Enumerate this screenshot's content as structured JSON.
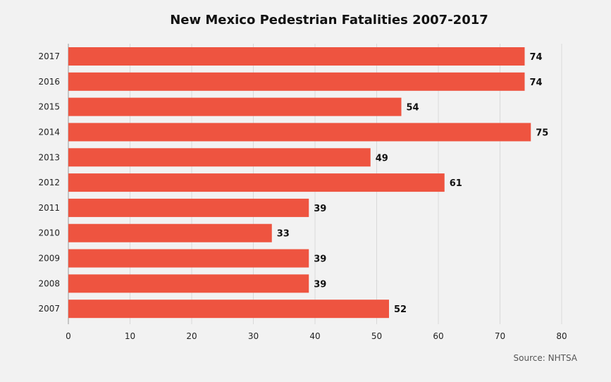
{
  "chart_data": {
    "type": "bar",
    "orientation": "horizontal",
    "title": "New Mexico Pedestrian Fatalities 2007-2017",
    "source": "Source: NHTSA",
    "categories": [
      "2017",
      "2016",
      "2015",
      "2014",
      "2013",
      "2012",
      "2011",
      "2010",
      "2009",
      "2008",
      "2007"
    ],
    "values": [
      74,
      74,
      54,
      75,
      49,
      61,
      39,
      33,
      39,
      39,
      52
    ],
    "xlim": [
      0,
      80
    ],
    "xticks": [
      0,
      10,
      20,
      30,
      40,
      50,
      60,
      70,
      80
    ],
    "grid": "vertical",
    "bar_color": "#ee5440"
  }
}
